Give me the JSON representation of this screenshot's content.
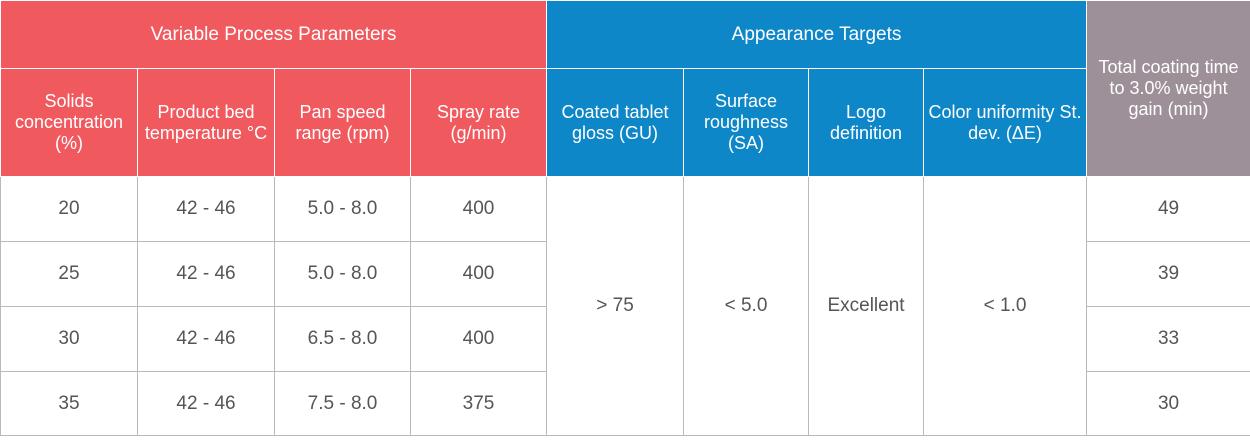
{
  "colors": {
    "process_header": "#f05a5f",
    "appearance_header": "#0e87c8",
    "time_header": "#9e9099"
  },
  "groups": {
    "process": "Variable Process Parameters",
    "appearance": "Appearance Targets",
    "time": "Total coating time to 3.0% weight gain (min)"
  },
  "columns": {
    "solids": "Solids concentration (%)",
    "bed_temp": "Product bed temperature °C",
    "pan_speed": "Pan speed range (rpm)",
    "spray_rate": "Spray rate (g/min)",
    "gloss": "Coated tablet gloss (GU)",
    "roughness": "Surface roughness (SA)",
    "logo": "Logo definition",
    "color": "Color uniformity St. dev. (ΔE)"
  },
  "targets": {
    "gloss": "> 75",
    "roughness": "< 5.0",
    "logo": "Excellent",
    "color": "< 1.0"
  },
  "rows": [
    {
      "solids": "20",
      "bed_temp": "42 - 46",
      "pan_speed": "5.0 - 8.0",
      "spray_rate": "400",
      "time": "49"
    },
    {
      "solids": "25",
      "bed_temp": "42 - 46",
      "pan_speed": "5.0 - 8.0",
      "spray_rate": "400",
      "time": "39"
    },
    {
      "solids": "30",
      "bed_temp": "42 - 46",
      "pan_speed": "6.5 - 8.0",
      "spray_rate": "400",
      "time": "33"
    },
    {
      "solids": "35",
      "bed_temp": "42 - 46",
      "pan_speed": "7.5 - 8.0",
      "spray_rate": "375",
      "time": "30"
    }
  ]
}
